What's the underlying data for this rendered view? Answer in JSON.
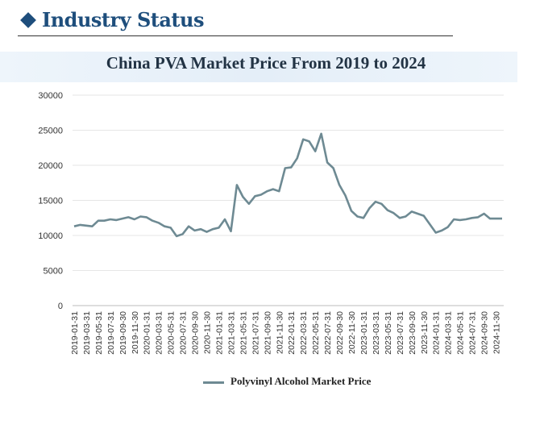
{
  "header": {
    "title": "Industry Status"
  },
  "colors": {
    "accent": "#1e4e7c",
    "line": "#6e8a93"
  },
  "chart_data": {
    "type": "line",
    "title": "China PVA Market Price From 2019 to 2024",
    "xlabel": "",
    "ylabel": "",
    "ylim": [
      0,
      30000
    ],
    "yticks": [
      "30000",
      "25000",
      "20000",
      "15000",
      "10000",
      "5000",
      "0"
    ],
    "xtick_labels": [
      "2019-01-31",
      "2019-03-31",
      "2019-05-31",
      "2019-07-31",
      "2019-09-30",
      "2019-11-30",
      "2020-01-31",
      "2020-03-31",
      "2020-05-31",
      "2020-07-31",
      "2020-09-30",
      "2020-11-30",
      "2021-01-31",
      "2021-03-31",
      "2021-05-31",
      "2021-07-31",
      "2021-09-30",
      "2021-11-30",
      "2022-01-31",
      "2022-03-31",
      "2022-05-31",
      "2022-07-31",
      "2022-09-30",
      "2022-11-30",
      "2023-01-31",
      "2023-03-31",
      "2023-05-31",
      "2023-07-31",
      "2023-09-30",
      "2023-11-30",
      "2024-01-31",
      "2024-03-31",
      "2024-05-31",
      "2024-07-31",
      "2024-09-30",
      "2024-11-30"
    ],
    "legend": "bottom",
    "grid": true,
    "series": [
      {
        "name": "Polyvinyl Alcohol Market Price",
        "values": [
          11300,
          11500,
          11400,
          11300,
          12100,
          12100,
          12300,
          12200,
          12400,
          12600,
          12300,
          12700,
          12600,
          12100,
          11800,
          11300,
          11100,
          9900,
          10200,
          11300,
          10700,
          10900,
          10500,
          10900,
          11100,
          12300,
          10600,
          17200,
          15500,
          14500,
          15600,
          15800,
          16300,
          16600,
          16300,
          19600,
          19700,
          21000,
          23700,
          23400,
          22000,
          24500,
          20400,
          19600,
          17200,
          15700,
          13500,
          12700,
          12500,
          13900,
          14800,
          14500,
          13600,
          13200,
          12500,
          12700,
          13400,
          13100,
          12800,
          11600,
          10400,
          10700,
          11200,
          12300,
          12200,
          12300,
          12500,
          12600,
          13100,
          12400,
          12400,
          12400
        ]
      }
    ]
  }
}
